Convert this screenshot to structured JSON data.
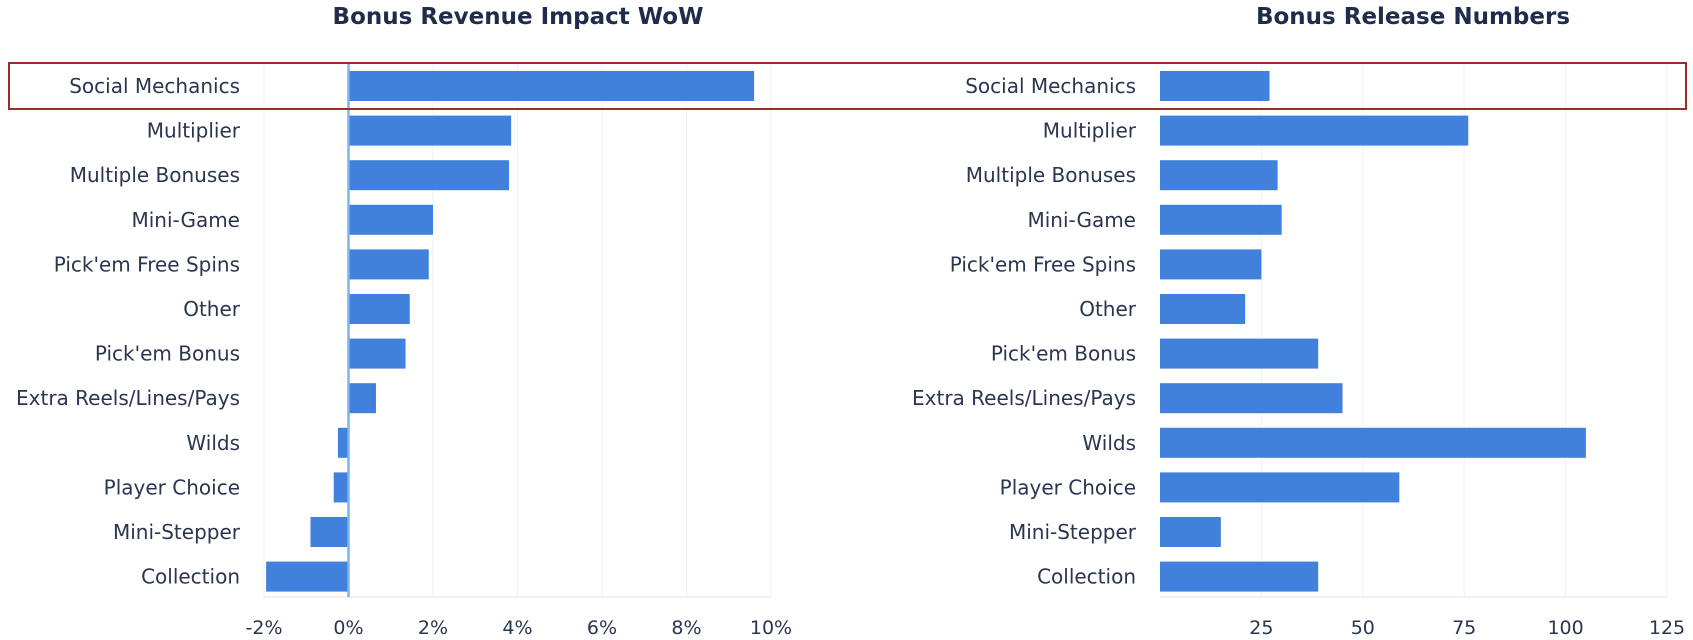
{
  "chart_data": [
    {
      "type": "bar",
      "orientation": "horizontal",
      "title": "Bonus Revenue Impact WoW",
      "categories": [
        "Social Mechanics",
        "Multiplier",
        "Multiple Bonuses",
        "Mini-Game",
        "Pick'em Free Spins",
        "Other",
        "Pick'em Bonus",
        "Extra Reels/Lines/Pays",
        "Wilds",
        "Player Choice",
        "Mini-Stepper",
        "Collection"
      ],
      "values": [
        9.6,
        3.85,
        3.8,
        2.0,
        1.9,
        1.45,
        1.35,
        0.65,
        -0.25,
        -0.35,
        -0.9,
        -1.95
      ],
      "xlim": [
        -2,
        10
      ],
      "ticks": [
        -2,
        0,
        2,
        4,
        6,
        8,
        10
      ],
      "tick_labels": [
        "-2%",
        "0%",
        "2%",
        "4%",
        "6%",
        "8%",
        "10%"
      ],
      "bar_color": "#4181dc",
      "zero_line_color": "#7fb3f0",
      "highlight": "Social Mechanics",
      "highlight_color": "#9c2b2b"
    },
    {
      "type": "bar",
      "orientation": "horizontal",
      "title": "Bonus Release Numbers",
      "categories": [
        "Social Mechanics",
        "Multiplier",
        "Multiple Bonuses",
        "Mini-Game",
        "Pick'em Free Spins",
        "Other",
        "Pick'em Bonus",
        "Extra Reels/Lines/Pays",
        "Wilds",
        "Player Choice",
        "Mini-Stepper",
        "Collection"
      ],
      "values": [
        27,
        76,
        29,
        30,
        25,
        21,
        39,
        45,
        105,
        59,
        15,
        39
      ],
      "xlim": [
        0,
        125
      ],
      "ticks": [
        25,
        50,
        75,
        100,
        125
      ],
      "tick_labels": [
        "25",
        "50",
        "75",
        "100",
        "125"
      ],
      "bar_color": "#4181dc"
    }
  ]
}
